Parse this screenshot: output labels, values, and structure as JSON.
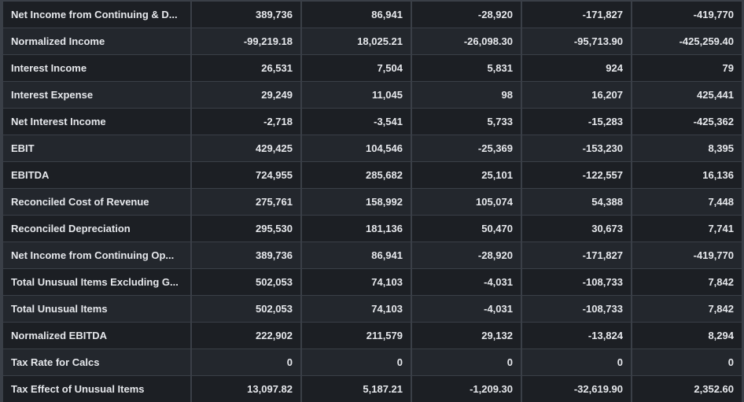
{
  "table": {
    "rows": [
      {
        "label": "Net Income from Continuing & D...",
        "values": [
          "389,736",
          "86,941",
          "-28,920",
          "-171,827",
          "-419,770"
        ]
      },
      {
        "label": "Normalized Income",
        "values": [
          "-99,219.18",
          "18,025.21",
          "-26,098.30",
          "-95,713.90",
          "-425,259.40"
        ]
      },
      {
        "label": "Interest Income",
        "values": [
          "26,531",
          "7,504",
          "5,831",
          "924",
          "79"
        ]
      },
      {
        "label": "Interest Expense",
        "values": [
          "29,249",
          "11,045",
          "98",
          "16,207",
          "425,441"
        ]
      },
      {
        "label": "Net Interest Income",
        "values": [
          "-2,718",
          "-3,541",
          "5,733",
          "-15,283",
          "-425,362"
        ]
      },
      {
        "label": "EBIT",
        "values": [
          "429,425",
          "104,546",
          "-25,369",
          "-153,230",
          "8,395"
        ]
      },
      {
        "label": "EBITDA",
        "values": [
          "724,955",
          "285,682",
          "25,101",
          "-122,557",
          "16,136"
        ]
      },
      {
        "label": "Reconciled Cost of Revenue",
        "values": [
          "275,761",
          "158,992",
          "105,074",
          "54,388",
          "7,448"
        ]
      },
      {
        "label": "Reconciled Depreciation",
        "values": [
          "295,530",
          "181,136",
          "50,470",
          "30,673",
          "7,741"
        ]
      },
      {
        "label": "Net Income from Continuing Op...",
        "values": [
          "389,736",
          "86,941",
          "-28,920",
          "-171,827",
          "-419,770"
        ]
      },
      {
        "label": "Total Unusual Items Excluding G...",
        "values": [
          "502,053",
          "74,103",
          "-4,031",
          "-108,733",
          "7,842"
        ]
      },
      {
        "label": "Total Unusual Items",
        "values": [
          "502,053",
          "74,103",
          "-4,031",
          "-108,733",
          "7,842"
        ]
      },
      {
        "label": "Normalized EBITDA",
        "values": [
          "222,902",
          "211,579",
          "29,132",
          "-13,824",
          "8,294"
        ]
      },
      {
        "label": "Tax Rate for Calcs",
        "values": [
          "0",
          "0",
          "0",
          "0",
          "0"
        ]
      },
      {
        "label": "Tax Effect of Unusual Items",
        "values": [
          "13,097.82",
          "5,187.21",
          "-1,209.30",
          "-32,619.90",
          "2,352.60"
        ]
      }
    ]
  },
  "colors": {
    "background": "#1c1f24",
    "grid_line": "#3a3f47",
    "text": "#e6e8ec"
  }
}
